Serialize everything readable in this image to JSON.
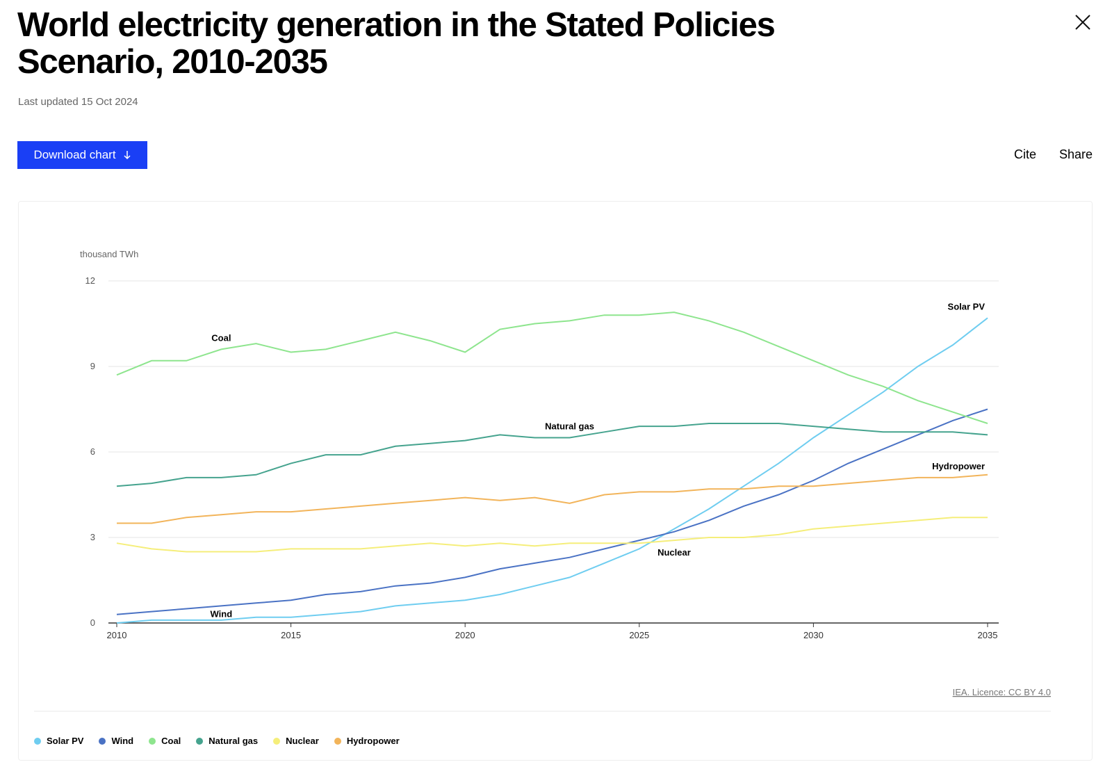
{
  "header": {
    "title": "World electricity generation in the Stated Policies Scenario, 2010-2035",
    "updated": "Last updated 15 Oct 2024"
  },
  "toolbar": {
    "download": "Download chart",
    "cite": "Cite",
    "share": "Share"
  },
  "chart_data": {
    "type": "line",
    "y_label": "thousand TWh",
    "source": "IEA. Licence: CC BY 4.0",
    "x": [
      2010,
      2011,
      2012,
      2013,
      2014,
      2015,
      2016,
      2017,
      2018,
      2019,
      2020,
      2021,
      2022,
      2023,
      2024,
      2025,
      2026,
      2027,
      2028,
      2029,
      2030,
      2031,
      2032,
      2033,
      2034,
      2035
    ],
    "xlim": [
      2010,
      2035
    ],
    "xticks": [
      2010,
      2015,
      2020,
      2025,
      2030,
      2035
    ],
    "ylim": [
      0,
      12
    ],
    "yticks": [
      0,
      3,
      6,
      9,
      12
    ],
    "grid": true,
    "legend": "bottom",
    "series": [
      {
        "name": "Solar PV",
        "color": "#6fcdf0",
        "values": [
          0,
          0.1,
          0.1,
          0.1,
          0.2,
          0.2,
          0.3,
          0.4,
          0.6,
          0.7,
          0.8,
          1.0,
          1.3,
          1.6,
          2.1,
          2.6,
          3.3,
          4.0,
          4.8,
          5.6,
          6.5,
          7.3,
          8.1,
          9.0,
          9.75,
          10.7
        ]
      },
      {
        "name": "Wind",
        "color": "#4a72c4",
        "values": [
          0.3,
          0.4,
          0.5,
          0.6,
          0.7,
          0.8,
          1.0,
          1.1,
          1.3,
          1.4,
          1.6,
          1.9,
          2.1,
          2.3,
          2.6,
          2.9,
          3.2,
          3.6,
          4.1,
          4.5,
          5.0,
          5.6,
          6.1,
          6.6,
          7.1,
          7.5
        ]
      },
      {
        "name": "Coal",
        "color": "#8ee58e",
        "values": [
          8.7,
          9.2,
          9.2,
          9.6,
          9.8,
          9.5,
          9.6,
          9.9,
          10.2,
          9.9,
          9.5,
          10.3,
          10.5,
          10.6,
          10.8,
          10.8,
          10.9,
          10.6,
          10.2,
          9.7,
          9.2,
          8.7,
          8.3,
          7.8,
          7.4,
          7.0
        ]
      },
      {
        "name": "Natural gas",
        "color": "#45a38e",
        "values": [
          4.8,
          4.9,
          5.1,
          5.1,
          5.2,
          5.6,
          5.9,
          5.9,
          6.2,
          6.3,
          6.4,
          6.6,
          6.5,
          6.5,
          6.7,
          6.9,
          6.9,
          7.0,
          7.0,
          7.0,
          6.9,
          6.8,
          6.7,
          6.7,
          6.7,
          6.6
        ]
      },
      {
        "name": "Nuclear",
        "color": "#f5ee7a",
        "values": [
          2.8,
          2.6,
          2.5,
          2.5,
          2.5,
          2.6,
          2.6,
          2.6,
          2.7,
          2.8,
          2.7,
          2.8,
          2.7,
          2.8,
          2.8,
          2.8,
          2.9,
          3.0,
          3.0,
          3.1,
          3.3,
          3.4,
          3.5,
          3.6,
          3.7,
          3.7
        ]
      },
      {
        "name": "Hydropower",
        "color": "#f2b45a",
        "values": [
          3.5,
          3.5,
          3.7,
          3.8,
          3.9,
          3.9,
          4.0,
          4.1,
          4.2,
          4.3,
          4.4,
          4.3,
          4.4,
          4.2,
          4.5,
          4.6,
          4.6,
          4.7,
          4.7,
          4.8,
          4.8,
          4.9,
          5.0,
          5.1,
          5.1,
          5.2
        ]
      }
    ]
  }
}
